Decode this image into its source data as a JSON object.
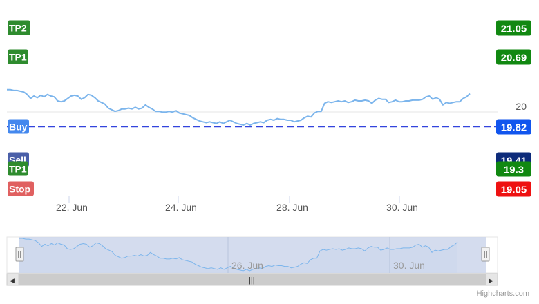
{
  "chart_data": {
    "type": "line",
    "title": "",
    "xlabel": "",
    "ylabel": "",
    "x_tick_labels": [
      "22. Jun",
      "24. Jun",
      "28. Jun",
      "30. Jun"
    ],
    "navigator_tick_labels": [
      "26. Jun",
      "30. Jun"
    ],
    "y_tick_labels": [
      "20"
    ],
    "ylim": [
      19.0,
      21.1
    ],
    "grid": true,
    "series": [
      {
        "color": "#7cb5ec",
        "values": [
          20.28,
          20.28,
          20.27,
          20.27,
          20.26,
          20.25,
          20.22,
          20.17,
          20.2,
          20.18,
          20.21,
          20.19,
          20.22,
          20.2,
          20.19,
          20.14,
          20.13,
          20.14,
          20.17,
          20.2,
          20.21,
          20.2,
          20.16,
          20.18,
          20.22,
          20.21,
          20.18,
          20.14,
          20.12,
          20.1,
          20.05,
          20.03,
          20.01,
          20.02,
          20.04,
          20.04,
          20.05,
          20.04,
          20.06,
          20.04,
          20.05,
          20.09,
          20.06,
          20.04,
          20.01,
          20.01,
          20.0,
          20.0,
          20.01,
          20.0,
          20.02,
          19.99,
          19.98,
          19.97,
          19.96,
          19.93,
          19.91,
          19.89,
          19.88,
          19.87,
          19.88,
          19.87,
          19.86,
          19.88,
          19.86,
          19.88,
          19.9,
          19.88,
          19.86,
          19.85,
          19.84,
          19.86,
          19.84,
          19.86,
          19.87,
          19.88,
          19.87,
          19.9,
          19.91,
          19.9,
          19.92,
          19.91,
          19.91,
          19.9,
          19.9,
          19.88,
          19.89,
          19.9,
          19.93,
          19.95,
          19.94,
          19.99,
          20.01,
          20.01,
          20.11,
          20.13,
          20.12,
          20.13,
          20.14,
          20.13,
          20.14,
          20.12,
          20.13,
          20.15,
          20.14,
          20.14,
          20.15,
          20.14,
          20.11,
          20.15,
          20.17,
          20.16,
          20.16,
          20.12,
          20.13,
          20.15,
          20.13,
          20.13,
          20.14,
          20.14,
          20.15,
          20.15,
          20.15,
          20.16,
          20.19,
          20.2,
          20.16,
          20.18,
          20.16,
          20.09,
          20.12,
          20.11,
          20.12,
          20.13,
          20.13,
          20.17,
          20.19,
          20.23
        ]
      }
    ],
    "plot_lines": [
      {
        "label": "TP2",
        "value": 21.05,
        "value_label": "21.05",
        "color": "#8e24aa",
        "label_bg": "#2e8b2e",
        "value_bg": "#118811",
        "dash": "dashdot"
      },
      {
        "label": "TP1",
        "value": 20.69,
        "value_label": "20.69",
        "color": "#109010",
        "label_bg": "#2e8b2e",
        "value_bg": "#118811",
        "dash": "dot"
      },
      {
        "label": "Buy",
        "value": 19.82,
        "value_label": "19.82",
        "color": "#3344dd",
        "label_bg": "#4488ee",
        "value_bg": "#1155ee",
        "dash": "dash"
      },
      {
        "label": "Sell",
        "value": 19.41,
        "value_label": "19.41",
        "color": "#116611",
        "label_bg": "#4a5fa8",
        "value_bg": "#0d2b7a",
        "dash": "longdash"
      },
      {
        "label": "TP1",
        "value": 19.3,
        "value_label": "19.3",
        "color": "#109010",
        "label_bg": "#2e8b2e",
        "value_bg": "#118811",
        "dash": "dot"
      },
      {
        "label": "Stop",
        "value": 19.05,
        "value_label": "19.05",
        "color": "#aa1111",
        "label_bg": "#e06060",
        "value_bg": "#ee1111",
        "dash": "dashdot"
      }
    ]
  },
  "navigator": {
    "scrollbar_grip": "|||",
    "left_arrow": "◀",
    "right_arrow": "▶",
    "handle_glyph": "||"
  },
  "credits": "Highcharts.com"
}
